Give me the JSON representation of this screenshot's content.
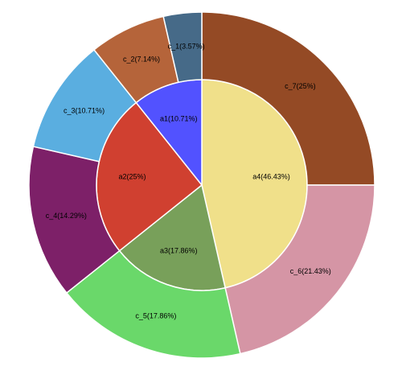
{
  "chart_data": [
    {
      "type": "pie",
      "values": [
        46.43,
        17.86,
        25,
        10.71
      ],
      "value_labels": [
        "a4(46.43%)",
        "a3(17.86%)",
        "a2(25%)",
        "a1(10.71%)"
      ],
      "colors": [
        "#f0e08a",
        "#78a05a",
        "#d04030",
        "#5252ff"
      ]
    },
    {
      "type": "donut",
      "values": [
        25,
        21.43,
        17.86,
        14.29,
        10.71,
        7.14,
        3.57
      ],
      "value_labels": [
        "c_7(25%)",
        "c_6(21.43%)",
        "c_5(17.86%)",
        "c_4(14.29%)",
        "c_3(10.71%)",
        "c_2(7.14%)",
        "c_1(3.57%)"
      ],
      "colors": [
        "#944a25",
        "#d595a5",
        "#6ad86a",
        "#7d2068",
        "#5aaee0",
        "#b5643a",
        "#466a88"
      ]
    }
  ]
}
